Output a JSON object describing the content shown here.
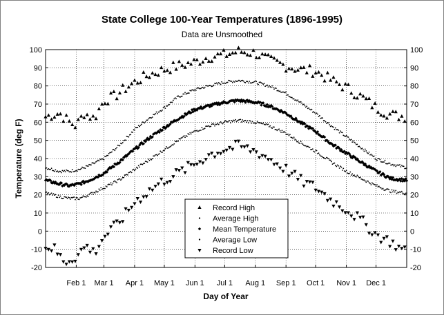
{
  "chart_data": {
    "type": "scatter",
    "title": "State College 100-Year Temperatures  (1896-1995)",
    "subtitle": "Data are Unsmoothed",
    "xlabel": "Day of Year",
    "ylabel": "Temperature (deg F)",
    "xlim": [
      1,
      366
    ],
    "ylim": [
      -20,
      100
    ],
    "y_ticks": [
      -20,
      -10,
      0,
      10,
      20,
      30,
      40,
      50,
      60,
      70,
      80,
      90,
      100
    ],
    "x_ticks": [
      {
        "day": 32,
        "label": "Feb 1"
      },
      {
        "day": 60,
        "label": "Mar 1"
      },
      {
        "day": 91,
        "label": "Apr 1"
      },
      {
        "day": 121,
        "label": "May 1"
      },
      {
        "day": 152,
        "label": "Jun 1"
      },
      {
        "day": 182,
        "label": "Jul 1"
      },
      {
        "day": 213,
        "label": "Aug 1"
      },
      {
        "day": 244,
        "label": "Sep 1"
      },
      {
        "day": 274,
        "label": "Oct 1"
      },
      {
        "day": 305,
        "label": "Nov 1"
      },
      {
        "day": 335,
        "label": "Dec 1"
      }
    ],
    "grid": true,
    "right_axis_labels": true,
    "legend_position": "bottom-center",
    "series": [
      {
        "name": "Record High",
        "marker": "triangle-up",
        "step_days": 3,
        "anchors": [
          [
            1,
            63
          ],
          [
            15,
            65
          ],
          [
            25,
            60
          ],
          [
            32,
            58
          ],
          [
            40,
            65
          ],
          [
            50,
            62
          ],
          [
            60,
            72
          ],
          [
            70,
            74
          ],
          [
            80,
            78
          ],
          [
            91,
            82
          ],
          [
            105,
            86
          ],
          [
            121,
            89
          ],
          [
            135,
            91
          ],
          [
            152,
            93
          ],
          [
            166,
            96
          ],
          [
            182,
            97
          ],
          [
            196,
            99
          ],
          [
            213,
            98
          ],
          [
            227,
            94
          ],
          [
            244,
            91
          ],
          [
            258,
            89
          ],
          [
            274,
            88
          ],
          [
            290,
            83
          ],
          [
            305,
            79
          ],
          [
            320,
            74
          ],
          [
            335,
            68
          ],
          [
            350,
            64
          ],
          [
            366,
            63
          ]
        ]
      },
      {
        "name": "Average High",
        "marker": "dot",
        "step_days": 1,
        "anchors": [
          [
            1,
            35
          ],
          [
            15,
            33
          ],
          [
            25,
            33
          ],
          [
            35,
            34
          ],
          [
            45,
            36
          ],
          [
            60,
            40
          ],
          [
            75,
            47
          ],
          [
            91,
            56
          ],
          [
            105,
            62
          ],
          [
            121,
            68
          ],
          [
            135,
            74
          ],
          [
            152,
            78
          ],
          [
            166,
            80
          ],
          [
            182,
            82
          ],
          [
            196,
            83
          ],
          [
            213,
            82
          ],
          [
            227,
            80
          ],
          [
            244,
            76
          ],
          [
            258,
            71
          ],
          [
            274,
            65
          ],
          [
            290,
            58
          ],
          [
            305,
            52
          ],
          [
            320,
            46
          ],
          [
            335,
            40
          ],
          [
            350,
            37
          ],
          [
            366,
            35
          ]
        ]
      },
      {
        "name": "Mean Temperature",
        "marker": "diamond",
        "step_days": 1,
        "anchors": [
          [
            1,
            28
          ],
          [
            15,
            26
          ],
          [
            25,
            25
          ],
          [
            35,
            26
          ],
          [
            45,
            28
          ],
          [
            60,
            32
          ],
          [
            75,
            38
          ],
          [
            91,
            45
          ],
          [
            105,
            51
          ],
          [
            121,
            57
          ],
          [
            135,
            62
          ],
          [
            152,
            67
          ],
          [
            166,
            69
          ],
          [
            182,
            71
          ],
          [
            196,
            72
          ],
          [
            213,
            71
          ],
          [
            227,
            69
          ],
          [
            244,
            65
          ],
          [
            258,
            60
          ],
          [
            274,
            55
          ],
          [
            290,
            48
          ],
          [
            305,
            43
          ],
          [
            320,
            38
          ],
          [
            335,
            33
          ],
          [
            350,
            29
          ],
          [
            366,
            28
          ]
        ]
      },
      {
        "name": "Average Low",
        "marker": "dot",
        "step_days": 1,
        "anchors": [
          [
            1,
            21
          ],
          [
            15,
            19
          ],
          [
            25,
            18
          ],
          [
            35,
            18
          ],
          [
            45,
            20
          ],
          [
            60,
            24
          ],
          [
            75,
            28
          ],
          [
            91,
            34
          ],
          [
            105,
            39
          ],
          [
            121,
            45
          ],
          [
            135,
            50
          ],
          [
            152,
            55
          ],
          [
            166,
            58
          ],
          [
            182,
            60
          ],
          [
            196,
            61
          ],
          [
            213,
            60
          ],
          [
            227,
            58
          ],
          [
            244,
            54
          ],
          [
            258,
            49
          ],
          [
            274,
            44
          ],
          [
            290,
            38
          ],
          [
            305,
            33
          ],
          [
            320,
            29
          ],
          [
            335,
            25
          ],
          [
            350,
            22
          ],
          [
            366,
            21
          ]
        ]
      },
      {
        "name": "Record Low",
        "marker": "triangle-down",
        "step_days": 3,
        "anchors": [
          [
            1,
            -8
          ],
          [
            10,
            -10
          ],
          [
            20,
            -17
          ],
          [
            32,
            -14
          ],
          [
            42,
            -8
          ],
          [
            50,
            -12
          ],
          [
            60,
            -3
          ],
          [
            70,
            2
          ],
          [
            80,
            8
          ],
          [
            91,
            16
          ],
          [
            105,
            22
          ],
          [
            121,
            28
          ],
          [
            135,
            32
          ],
          [
            152,
            37
          ],
          [
            166,
            42
          ],
          [
            182,
            45
          ],
          [
            196,
            47
          ],
          [
            213,
            44
          ],
          [
            227,
            40
          ],
          [
            244,
            34
          ],
          [
            258,
            28
          ],
          [
            274,
            24
          ],
          [
            290,
            17
          ],
          [
            305,
            12
          ],
          [
            320,
            6
          ],
          [
            335,
            -2
          ],
          [
            350,
            -6
          ],
          [
            366,
            -12
          ]
        ]
      }
    ]
  },
  "legend": {
    "items": [
      {
        "label": "Record High",
        "marker": "triangle-up"
      },
      {
        "label": "Average High",
        "marker": "dot"
      },
      {
        "label": "Mean Temperature",
        "marker": "diamond"
      },
      {
        "label": "Average Low",
        "marker": "dot"
      },
      {
        "label": "Record Low",
        "marker": "triangle-down"
      }
    ]
  }
}
